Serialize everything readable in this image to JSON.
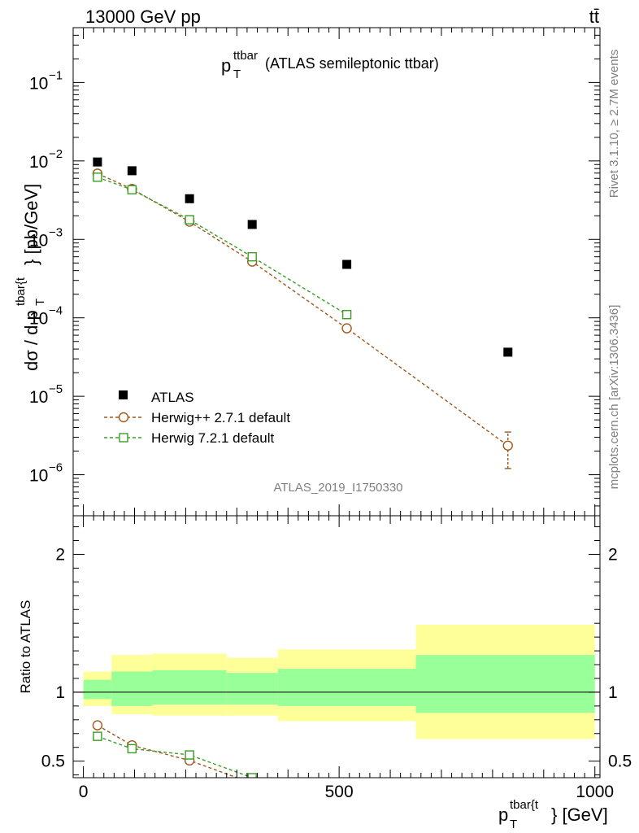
{
  "header": {
    "left": "13000 GeV pp",
    "right": "tt̄"
  },
  "plot_title": {
    "main": "p",
    "sub": "T",
    "sup": "ttbar",
    "rest": "(ATLAS semileptonic ttbar)"
  },
  "watermark": "ATLAS_2019_I1750330",
  "side_labels": {
    "rivet": "Rivet 3.1.10, ≥ 2.7M events",
    "mcplots": "mcplots.cern.ch [arXiv:1306.3436]"
  },
  "axis_titles": {
    "y_top": {
      "pre": "dσ / d p",
      "sub": "T",
      "sup": "tbar{t",
      "post": "} [pb/GeV]"
    },
    "y_bottom": "Ratio to ATLAS",
    "x": {
      "pre": "p",
      "sub": "T",
      "sup": "tbar{t",
      "post": "} [GeV]"
    }
  },
  "chart_data": [
    {
      "type": "scatter",
      "panel": "main",
      "yscale": "log",
      "xlim": [
        -20,
        1010
      ],
      "ylim": [
        3e-07,
        0.5
      ],
      "x_ticks": [
        0,
        500,
        1000
      ],
      "y_ticks": [
        {
          "value": 1e-06,
          "mantissa": "10",
          "exp": "−6"
        },
        {
          "value": 1e-05,
          "mantissa": "10",
          "exp": "−5"
        },
        {
          "value": 0.0001,
          "mantissa": "10",
          "exp": "−4"
        },
        {
          "value": 0.001,
          "mantissa": "10",
          "exp": "−3"
        },
        {
          "value": 0.01,
          "mantissa": "10",
          "exp": "−2"
        },
        {
          "value": 0.1,
          "mantissa": "10",
          "exp": "−1"
        }
      ],
      "legend_position": "bottom-left",
      "series": [
        {
          "name": "ATLAS",
          "color": "#000000",
          "marker": "filled-square",
          "x": [
            27.5,
            95,
            207.5,
            330,
            515,
            830
          ],
          "y": [
            0.0097,
            0.0075,
            0.0033,
            0.00155,
            0.00048,
            3.65e-05
          ]
        },
        {
          "name": "Herwig++ 2.7.1 default",
          "color": "#a0581c",
          "marker": "open-circle",
          "line": "dashed",
          "x": [
            27.5,
            95,
            207.5,
            330,
            515,
            830
          ],
          "y": [
            0.0069,
            0.0044,
            0.00168,
            0.00052,
            7.35e-05,
            2.35e-06
          ],
          "yerr": [
            null,
            null,
            null,
            null,
            null,
            [
              1.2e-06,
              3.5e-06
            ]
          ]
        },
        {
          "name": "Herwig 7.2.1 default",
          "color": "#3a9d23",
          "marker": "open-square",
          "line": "dashed",
          "x": [
            27.5,
            95,
            207.5,
            330,
            515
          ],
          "y": [
            0.0062,
            0.0043,
            0.00178,
            0.0006,
            0.00011
          ]
        }
      ]
    },
    {
      "type": "line",
      "panel": "ratio",
      "xlim": [
        -20,
        1010
      ],
      "ylim": [
        0.38,
        2.28
      ],
      "y_ticks": [
        0.5,
        1,
        2
      ],
      "x_ticks": [
        0,
        500,
        1000
      ],
      "bands": {
        "bin_edges": [
          0,
          55,
          135,
          280,
          380,
          650,
          1000
        ],
        "outer_color": "#ffff99",
        "inner_color": "#99ff99",
        "outer_lo": [
          0.9,
          0.84,
          0.83,
          0.83,
          0.79,
          0.66
        ],
        "outer_hi": [
          1.15,
          1.27,
          1.28,
          1.25,
          1.31,
          1.49
        ],
        "inner_lo": [
          0.95,
          0.9,
          0.91,
          0.91,
          0.9,
          0.85
        ],
        "inner_hi": [
          1.09,
          1.15,
          1.16,
          1.14,
          1.17,
          1.27
        ]
      },
      "series": [
        {
          "name": "Herwig++ 2.7.1 default",
          "color": "#a0581c",
          "marker": "open-circle",
          "x": [
            27.5,
            95,
            207.5,
            330
          ],
          "y": [
            0.76,
            0.615,
            0.505,
            0.34
          ]
        },
        {
          "name": "Herwig 7.2.1 default",
          "color": "#3a9d23",
          "marker": "open-square",
          "x": [
            27.5,
            95,
            207.5,
            330
          ],
          "y": [
            0.68,
            0.59,
            0.545,
            0.38
          ]
        }
      ]
    }
  ]
}
